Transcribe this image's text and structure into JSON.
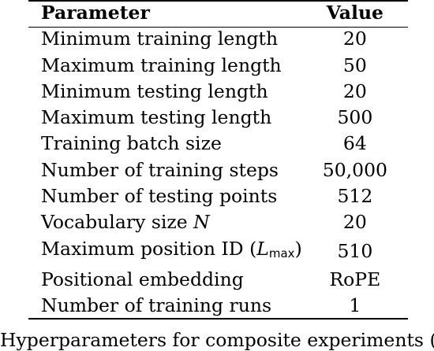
{
  "table": {
    "headers": {
      "parameter": "Parameter",
      "value": "Value"
    },
    "rows": [
      {
        "parameter": "Minimum training length",
        "value": "20"
      },
      {
        "parameter": "Maximum training length",
        "value": "50"
      },
      {
        "parameter": "Minimum testing length",
        "value": "20"
      },
      {
        "parameter": "Maximum testing length",
        "value": "500"
      },
      {
        "parameter": "Training batch size",
        "value": "64"
      },
      {
        "parameter": "Number of training steps",
        "value": "50,000"
      },
      {
        "parameter": "Number of testing points",
        "value": "512"
      },
      {
        "parameter_prefix": "Vocabulary size ",
        "parameter_math": "N",
        "value": "20"
      },
      {
        "parameter_prefix": "Maximum position ID (",
        "parameter_math": "L",
        "parameter_sub": "max",
        "parameter_suffix": ")",
        "value": "510"
      },
      {
        "parameter": "Positional embedding",
        "value": "RoPE"
      },
      {
        "parameter": "Number of training runs",
        "value": "1"
      }
    ]
  },
  "caption_fragment": "Hyperparameters for composite experiments (S"
}
